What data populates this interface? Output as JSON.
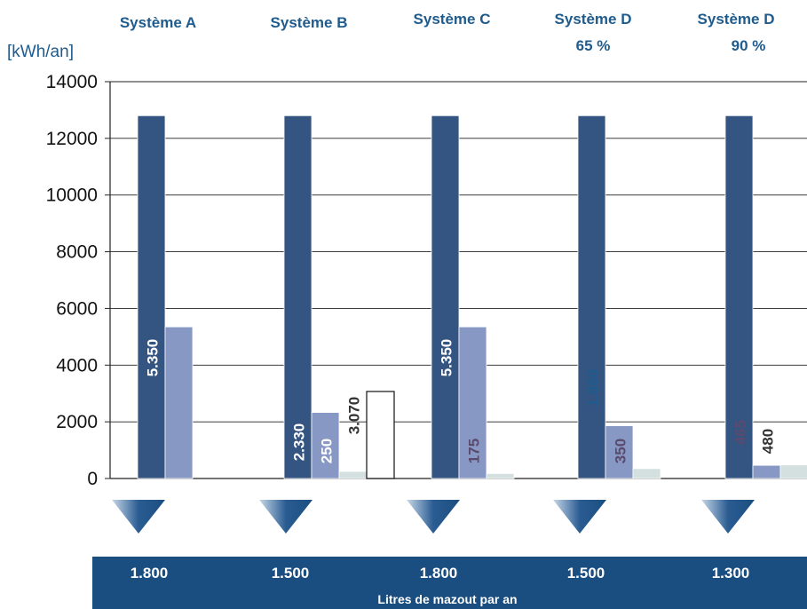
{
  "unit_label": "[kWh/an]",
  "systems": [
    {
      "name_line1": "Système A",
      "name_line2": ""
    },
    {
      "name_line1": "Système B",
      "name_line2": ""
    },
    {
      "name_line1": "Système C",
      "name_line2": ""
    },
    {
      "name_line1": "Système D",
      "name_line2": "65 %"
    },
    {
      "name_line1": "Système D",
      "name_line2": "90 %"
    }
  ],
  "footer": {
    "values": [
      "1.800",
      "1.500",
      "1.800",
      "1.500",
      "1.300"
    ],
    "caption": "Litres de mazout par an"
  },
  "colors": {
    "series1": "#345582",
    "series2": "#8898c4",
    "series3": "#d4e0e0",
    "series_outline": "#ffffff",
    "footer_bg": "#1b4e80",
    "title": "#1f5b8c"
  },
  "chart_data": {
    "type": "bar",
    "categories": [
      "Système A",
      "Système B",
      "Système C",
      "Système D 65 %",
      "Système D 90 %"
    ],
    "ylim": [
      0,
      14000
    ],
    "yticks": [
      0,
      2000,
      4000,
      6000,
      8000,
      10000,
      12000,
      14000
    ],
    "ylabel": "[kWh/an]",
    "grid": true,
    "series": [
      {
        "values": [
          12800,
          12800,
          12800,
          12800,
          12800
        ],
        "labels": [
          "5.350",
          "2.330",
          "5.350",
          "1.860",
          "465"
        ],
        "label_colors": [
          "#ffffff",
          "#ffffff",
          "#ffffff",
          "#1f5b8c",
          "#5a4a6e"
        ]
      },
      {
        "values": [
          5350,
          2330,
          5350,
          1860,
          465
        ],
        "labels": [
          "",
          "250",
          "175",
          "350",
          "480"
        ],
        "label_colors": [
          "#ffffff",
          "#ffffff",
          "#5a4a6e",
          "#5a4a6e",
          "#333333"
        ]
      },
      {
        "values": [
          0,
          250,
          175,
          350,
          480
        ],
        "labels": [
          "",
          "3.070",
          "",
          "",
          ""
        ],
        "label_colors": [
          "#333333",
          "#333333",
          "#333333",
          "#333333",
          "#333333"
        ]
      },
      {
        "values": [
          0,
          3070,
          0,
          0,
          0
        ],
        "labels": [
          "",
          "",
          "",
          "",
          ""
        ]
      }
    ]
  }
}
